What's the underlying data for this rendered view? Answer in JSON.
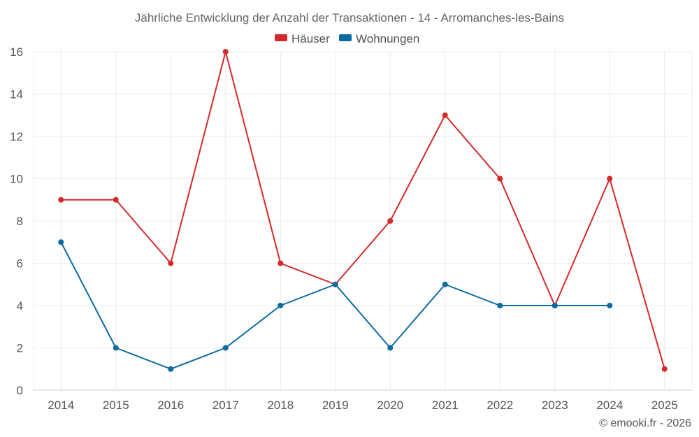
{
  "chart_data": {
    "type": "line",
    "title": "Jährliche Entwicklung der Anzahl der Transaktionen - 14 - Arromanches-les-Bains",
    "x": [
      "2014",
      "2015",
      "2016",
      "2017",
      "2018",
      "2019",
      "2020",
      "2021",
      "2022",
      "2023",
      "2024",
      "2025"
    ],
    "series": [
      {
        "name": "Häuser",
        "color": "#d42a2a",
        "values": [
          9,
          9,
          6,
          16,
          6,
          5,
          8,
          13,
          10,
          4,
          10,
          1
        ]
      },
      {
        "name": "Wohnungen",
        "color": "#0a6aa1",
        "values": [
          7,
          2,
          1,
          2,
          4,
          5,
          2,
          5,
          4,
          4,
          4,
          null
        ]
      }
    ],
    "ylim": [
      0,
      16
    ],
    "yticks": [
      0,
      2,
      4,
      6,
      8,
      10,
      12,
      14,
      16
    ],
    "grid": true,
    "legend": "top-center",
    "xlabel": "",
    "ylabel": ""
  },
  "credit": "© emooki.fr - 2026"
}
